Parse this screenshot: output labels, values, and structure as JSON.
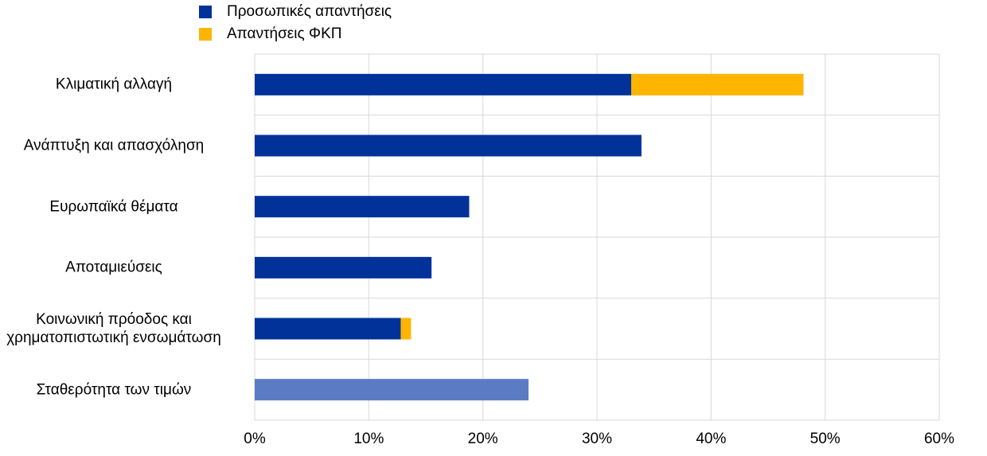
{
  "chart_data": {
    "type": "stacked-bar-horizontal",
    "categories": [
      "Κλιματική αλλαγή",
      "Ανάπτυξη και απασχόληση",
      "Ευρωπαϊκά θέματα",
      "Αποταμιεύσεις",
      "Κοινωνική πρόοδος και\nχρηματοπιστωτική ενσωμάτωση",
      "Σταθερότητα των τιμών"
    ],
    "series": [
      {
        "name": "Προσωπικές απαντήσεις",
        "color": "#003299",
        "point_colors": [
          null,
          null,
          null,
          null,
          null,
          "#5b7bc4"
        ],
        "values": [
          33,
          33.9,
          18.8,
          15.5,
          12.8,
          24
        ]
      },
      {
        "name": "Απαντήσεις ΦΚΠ",
        "color": "#ffb400",
        "values": [
          15.1,
          null,
          null,
          null,
          0.9,
          null
        ]
      }
    ],
    "xlim": [
      0,
      60
    ],
    "xticks": [
      {
        "value": 0,
        "label": "0%"
      },
      {
        "value": 10,
        "label": "10%"
      },
      {
        "value": 20,
        "label": "20%"
      },
      {
        "value": 30,
        "label": "30%"
      },
      {
        "value": 40,
        "label": "40%"
      },
      {
        "value": 50,
        "label": "50%"
      },
      {
        "value": 60,
        "label": "60%"
      }
    ],
    "grid": true
  }
}
